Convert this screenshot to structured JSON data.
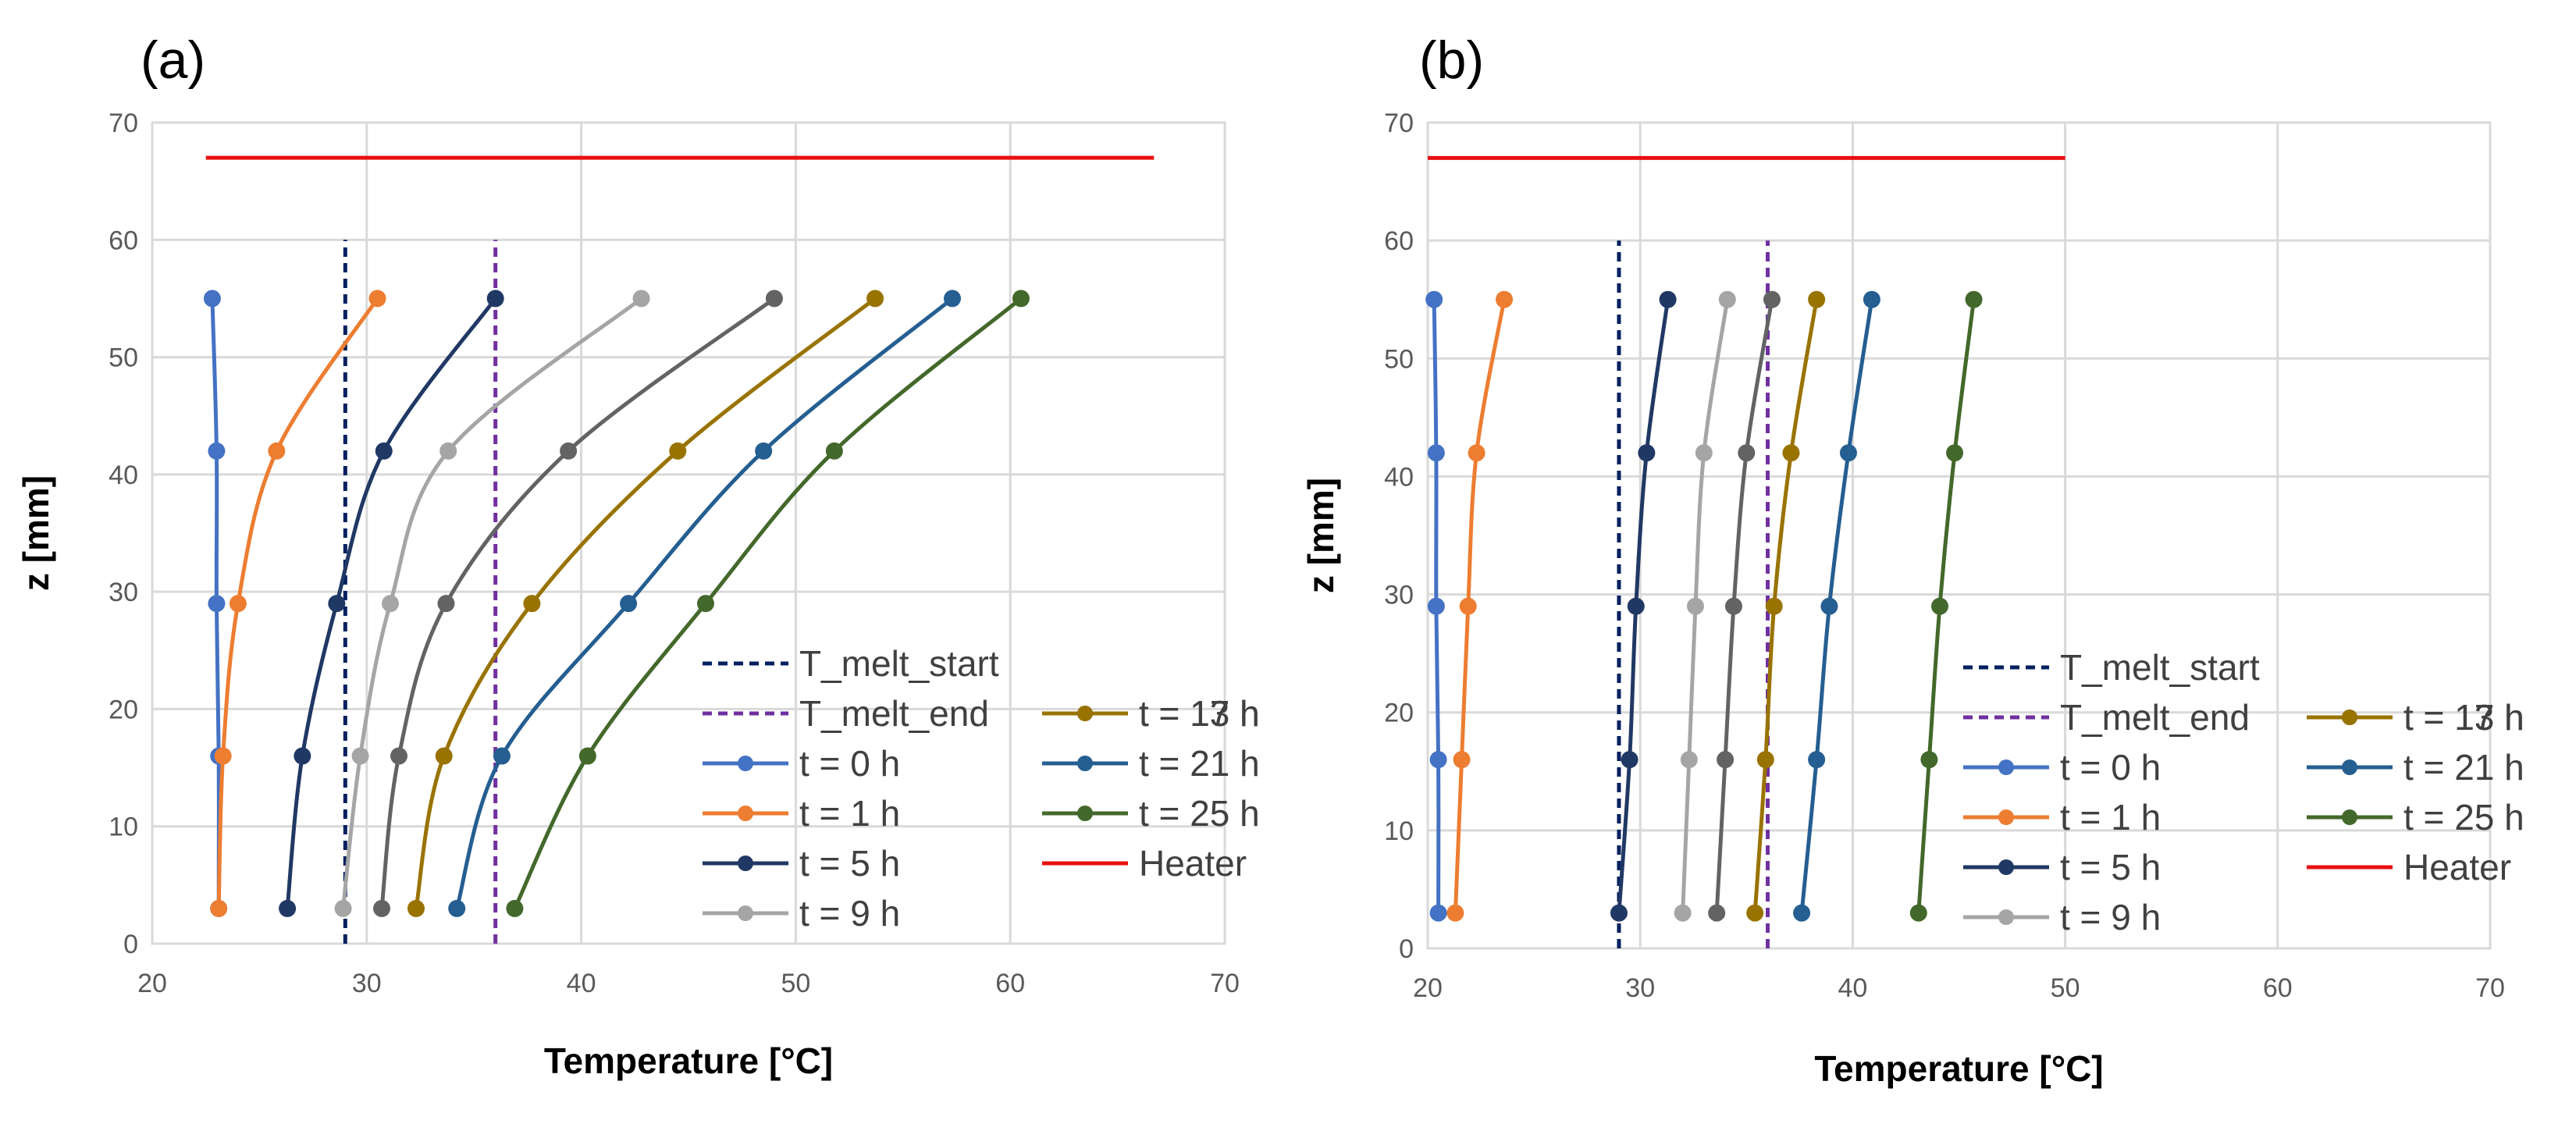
{
  "chart_data": [
    {
      "type": "line",
      "panel_label": "(a)",
      "xlabel": "Temperature [°C]",
      "ylabel": "z [mm]",
      "xlim": [
        20,
        70
      ],
      "ylim": [
        0,
        70
      ],
      "xticks": [
        20,
        30,
        40,
        50,
        60,
        70
      ],
      "yticks": [
        0,
        10,
        20,
        30,
        40,
        50,
        60,
        70
      ],
      "grid": true,
      "legend_position": "bottom-right",
      "reference_lines": [
        {
          "name": "T_melt_start",
          "color": "#002060",
          "style": "dashed",
          "x": [
            29,
            29
          ],
          "y": [
            0,
            60
          ]
        },
        {
          "name": "T_melt_end",
          "color": "#7030A0",
          "style": "dashed",
          "x": [
            36,
            36
          ],
          "y": [
            0,
            60
          ]
        },
        {
          "name": "Heater",
          "color": "#E81010",
          "style": "solid",
          "x": [
            22.5,
            66.7
          ],
          "y": [
            67,
            67
          ]
        }
      ],
      "series": [
        {
          "name": "t = 0 h",
          "color": "#4472C4",
          "x": [
            23.1,
            23.1,
            23.0,
            23.0,
            22.8
          ],
          "y": [
            3,
            16,
            29,
            42,
            55
          ]
        },
        {
          "name": "t = 1 h",
          "color": "#ED7D31",
          "x": [
            23.1,
            23.3,
            24.0,
            25.8,
            30.5
          ],
          "y": [
            3,
            16,
            29,
            42,
            55
          ]
        },
        {
          "name": "t = 5 h",
          "color": "#203864",
          "x": [
            26.3,
            27.0,
            28.6,
            30.8,
            36.0
          ],
          "y": [
            3,
            16,
            29,
            42,
            55
          ]
        },
        {
          "name": "t = 9 h",
          "color": "#A5A5A5",
          "x": [
            28.9,
            29.7,
            31.1,
            33.8,
            42.8
          ],
          "y": [
            3,
            16,
            29,
            42,
            55
          ]
        },
        {
          "name": "t = 13 h",
          "color": "#636363",
          "x": [
            30.7,
            31.5,
            33.7,
            39.4,
            49.0
          ],
          "y": [
            3,
            16,
            29,
            42,
            55
          ]
        },
        {
          "name": "t = 17 h",
          "color": "#997300",
          "x": [
            32.3,
            33.6,
            37.7,
            44.5,
            53.7
          ],
          "y": [
            3,
            16,
            29,
            42,
            55
          ]
        },
        {
          "name": "t = 21 h",
          "color": "#255E91",
          "x": [
            34.2,
            36.3,
            42.2,
            48.5,
            57.3
          ],
          "y": [
            3,
            16,
            29,
            42,
            55
          ]
        },
        {
          "name": "t = 25 h",
          "color": "#43682B",
          "x": [
            36.9,
            40.3,
            45.8,
            51.8,
            60.5
          ],
          "y": [
            3,
            16,
            29,
            42,
            55
          ]
        }
      ],
      "legend_entries": [
        "T_melt_start",
        "T_melt_end",
        "t = 13 h",
        "t = 0 h",
        "t = 17 h",
        "t = 1 h",
        "t = 21 h",
        "t = 5 h",
        "t = 25 h",
        "t = 9 h",
        "Heater"
      ]
    },
    {
      "type": "line",
      "panel_label": "(b)",
      "xlabel": "Temperature [°C]",
      "ylabel": "z [mm]",
      "xlim": [
        20,
        70
      ],
      "ylim": [
        0,
        70
      ],
      "xticks": [
        20,
        30,
        40,
        50,
        60,
        70
      ],
      "yticks": [
        0,
        10,
        20,
        30,
        40,
        50,
        60,
        70
      ],
      "grid": true,
      "legend_position": "bottom-right",
      "reference_lines": [
        {
          "name": "T_melt_start",
          "color": "#002060",
          "style": "dashed",
          "x": [
            29,
            29
          ],
          "y": [
            0,
            60
          ]
        },
        {
          "name": "T_melt_end",
          "color": "#7030A0",
          "style": "dashed",
          "x": [
            36,
            36
          ],
          "y": [
            0,
            60
          ]
        },
        {
          "name": "Heater",
          "color": "#E81010",
          "style": "solid",
          "x": [
            20,
            50
          ],
          "y": [
            67,
            67
          ]
        }
      ],
      "series": [
        {
          "name": "t = 0 h",
          "color": "#4472C4",
          "x": [
            20.5,
            20.5,
            20.4,
            20.4,
            20.3
          ],
          "y": [
            3,
            16,
            29,
            42,
            55
          ]
        },
        {
          "name": "t = 1 h",
          "color": "#ED7D31",
          "x": [
            21.3,
            21.6,
            21.9,
            22.3,
            23.6
          ],
          "y": [
            3,
            16,
            29,
            42,
            55
          ]
        },
        {
          "name": "t = 5 h",
          "color": "#203864",
          "x": [
            29.0,
            29.5,
            29.8,
            30.3,
            31.3
          ],
          "y": [
            3,
            16,
            29,
            42,
            55
          ]
        },
        {
          "name": "t = 9 h",
          "color": "#A5A5A5",
          "x": [
            32.0,
            32.3,
            32.6,
            33.0,
            34.1
          ],
          "y": [
            3,
            16,
            29,
            42,
            55
          ]
        },
        {
          "name": "t = 13 h",
          "color": "#636363",
          "x": [
            33.6,
            34.0,
            34.4,
            35.0,
            36.2
          ],
          "y": [
            3,
            16,
            29,
            42,
            55
          ]
        },
        {
          "name": "t = 17 h",
          "color": "#997300",
          "x": [
            35.4,
            35.9,
            36.3,
            37.1,
            38.3
          ],
          "y": [
            3,
            16,
            29,
            42,
            55
          ]
        },
        {
          "name": "t = 21 h",
          "color": "#255E91",
          "x": [
            37.6,
            38.3,
            38.9,
            39.8,
            40.9
          ],
          "y": [
            3,
            16,
            29,
            42,
            55
          ]
        },
        {
          "name": "t = 25 h",
          "color": "#43682B",
          "x": [
            43.1,
            43.6,
            44.1,
            44.8,
            45.7
          ],
          "y": [
            3,
            16,
            29,
            42,
            55
          ]
        }
      ],
      "legend_entries": [
        "T_melt_start",
        "T_melt_end",
        "t = 13 h",
        "t = 0 h",
        "t = 17 h",
        "t = 1 h",
        "t = 21 h",
        "t = 5 h",
        "t = 25 h",
        "t = 9 h",
        "Heater"
      ]
    }
  ]
}
